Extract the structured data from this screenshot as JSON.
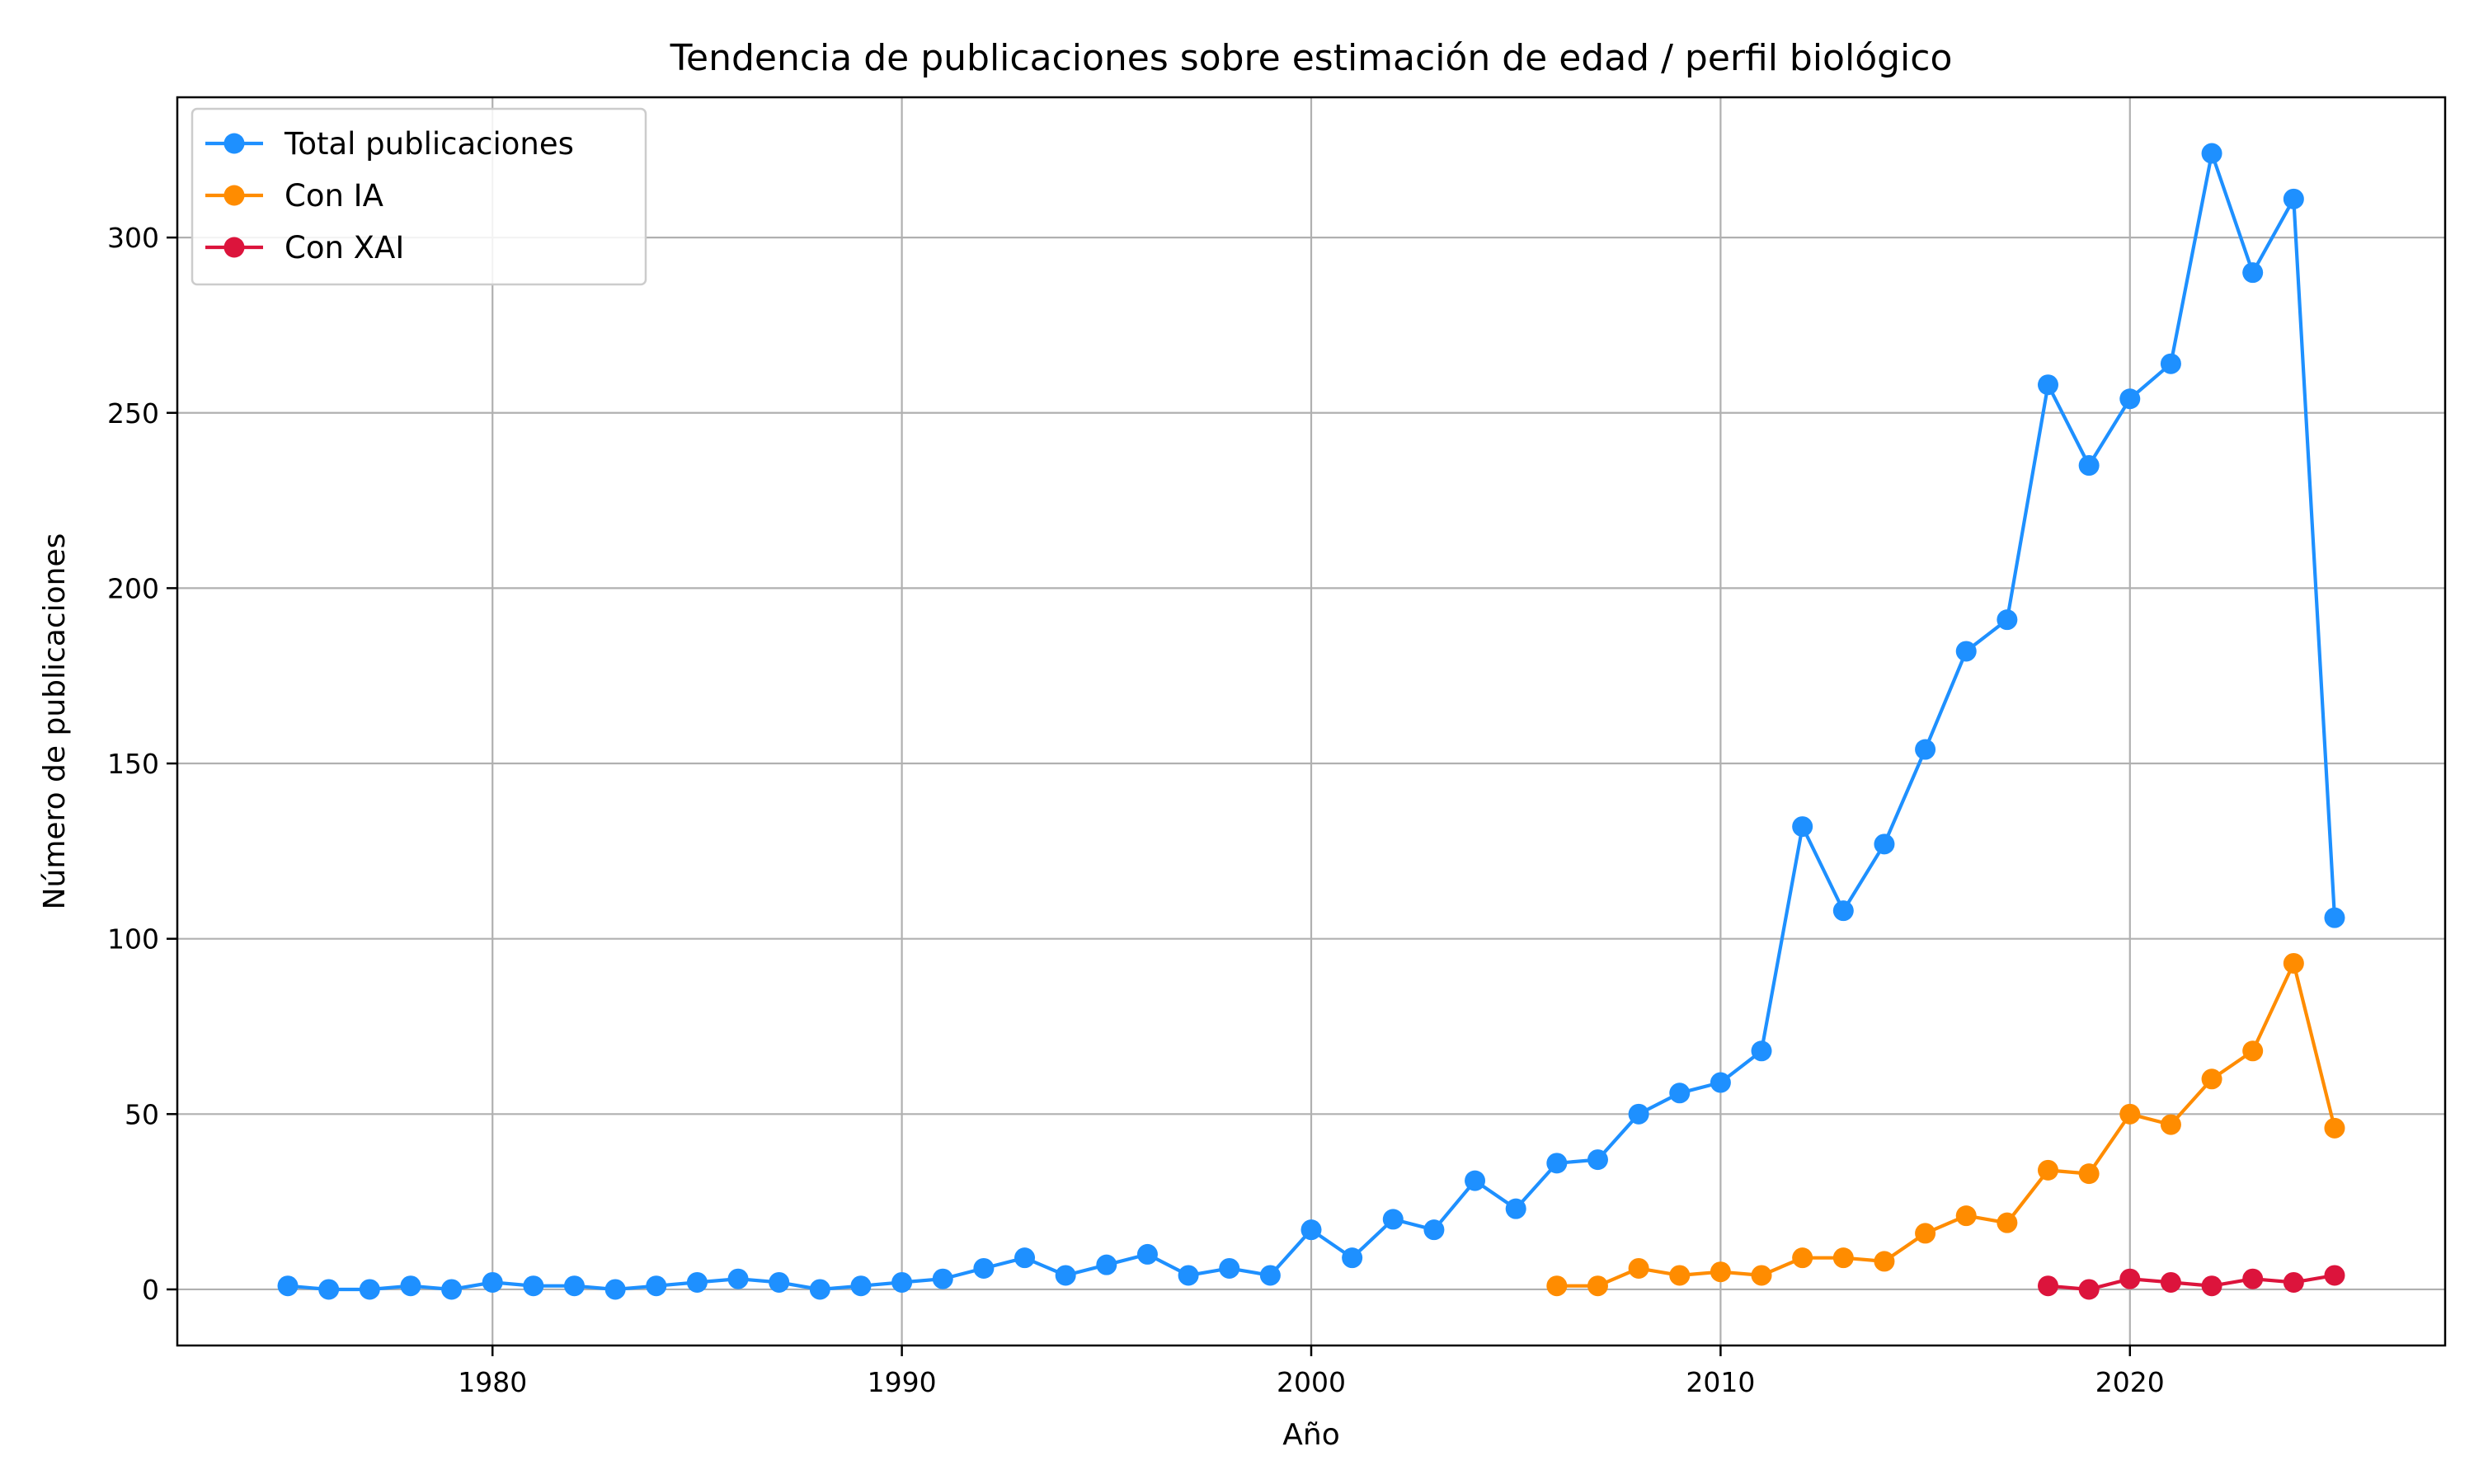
{
  "chart_data": {
    "type": "line",
    "title": "Tendencia de publicaciones sobre estimación de edad / perfil biológico",
    "xlabel": "Año",
    "ylabel": "Número de publicaciones",
    "xlim": [
      1972.3,
      2027.7
    ],
    "ylim": [
      -16,
      340
    ],
    "xticks": [
      1980,
      1990,
      2000,
      2010,
      2020
    ],
    "yticks": [
      0,
      50,
      100,
      150,
      200,
      250,
      300
    ],
    "grid": true,
    "legend_position": "upper-left",
    "series": [
      {
        "name": "Total publicaciones",
        "color": "#1e90ff",
        "x": [
          1975,
          1976,
          1977,
          1978,
          1979,
          1980,
          1981,
          1982,
          1983,
          1984,
          1985,
          1986,
          1987,
          1988,
          1989,
          1990,
          1991,
          1992,
          1993,
          1994,
          1995,
          1996,
          1997,
          1998,
          1999,
          2000,
          2001,
          2002,
          2003,
          2004,
          2005,
          2006,
          2007,
          2008,
          2009,
          2010,
          2011,
          2012,
          2013,
          2014,
          2015,
          2016,
          2017,
          2018,
          2019,
          2020,
          2021,
          2022,
          2023,
          2024,
          2025
        ],
        "y": [
          1,
          0,
          0,
          1,
          0,
          2,
          1,
          1,
          0,
          1,
          2,
          3,
          2,
          0,
          1,
          2,
          3,
          6,
          9,
          4,
          7,
          10,
          4,
          6,
          4,
          17,
          9,
          20,
          17,
          31,
          23,
          36,
          37,
          50,
          56,
          59,
          68,
          132,
          108,
          127,
          154,
          182,
          191,
          258,
          235,
          254,
          264,
          324,
          290,
          311,
          106
        ]
      },
      {
        "name": "Con IA",
        "color": "#ff8c00",
        "x": [
          2006,
          2007,
          2008,
          2009,
          2010,
          2011,
          2012,
          2013,
          2014,
          2015,
          2016,
          2017,
          2018,
          2019,
          2020,
          2021,
          2022,
          2023,
          2024,
          2025
        ],
        "y": [
          1,
          1,
          6,
          4,
          5,
          4,
          9,
          9,
          8,
          16,
          21,
          19,
          34,
          33,
          50,
          47,
          60,
          68,
          93,
          46
        ]
      },
      {
        "name": "Con XAI",
        "color": "#dc143c",
        "x": [
          2018,
          2019,
          2020,
          2021,
          2022,
          2023,
          2024,
          2025
        ],
        "y": [
          1,
          0,
          3,
          2,
          1,
          3,
          2,
          4
        ]
      }
    ]
  }
}
